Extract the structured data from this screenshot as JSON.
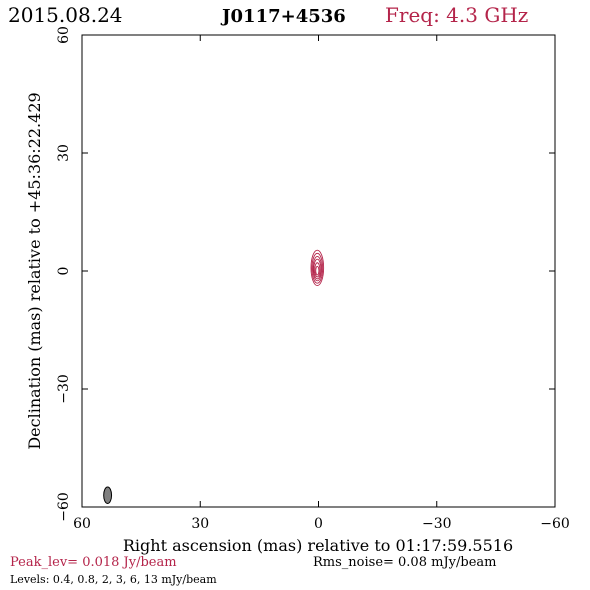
{
  "header": {
    "date": "2015.08.24",
    "source": "J0117+4536",
    "frequency": "Freq: 4.3 GHz"
  },
  "footer": {
    "peak": "Peak_lev=  0.018 Jy/beam",
    "rms": "Rms_noise= 0.08 mJy/beam",
    "levels": "Levels: 0.4, 0.8,   2,   3,   6,  13 mJy/beam"
  },
  "colors": {
    "accent": "#b4244a",
    "beam": "#808080",
    "axis": "#000000"
  },
  "chart_data": {
    "type": "contour",
    "xlabel": "Right ascension (mas) relative to 01:17:59.5516",
    "ylabel": "Declination (mas) relative to +45:36:22.429",
    "xlim": [
      60,
      -60
    ],
    "ylim": [
      -60,
      60
    ],
    "xticks": [
      60,
      30,
      0,
      -30,
      -60
    ],
    "yticks": [
      60,
      30,
      0,
      -30,
      -60
    ],
    "xtick_labels": [
      "60",
      "30",
      "0",
      "−30",
      "−60"
    ],
    "ytick_labels": [
      "60",
      "30",
      "0",
      "−30",
      "−60"
    ],
    "contour_levels_mJy_per_beam": [
      0.4,
      0.8,
      2,
      3,
      6,
      13
    ],
    "peak_Jy_per_beam": 0.018,
    "rms_mJy_per_beam": 0.08,
    "source_center": [
      0.3,
      0.2
    ],
    "contours": [
      {
        "level": 0.4,
        "x": 0.3,
        "y": 0.8,
        "rx": 1.6,
        "ry": 4.5
      },
      {
        "level": 0.8,
        "x": 0.3,
        "y": 0.7,
        "rx": 1.35,
        "ry": 3.8
      },
      {
        "level": 2,
        "x": 0.3,
        "y": 0.6,
        "rx": 1.1,
        "ry": 3.1
      },
      {
        "level": 3,
        "x": 0.3,
        "y": 0.5,
        "rx": 0.9,
        "ry": 2.5
      },
      {
        "level": 6,
        "x": 0.3,
        "y": 0.3,
        "rx": 0.65,
        "ry": 1.8
      },
      {
        "level": 13,
        "x": 0.3,
        "y": 0.1,
        "rx": 0.4,
        "ry": 1.1
      }
    ],
    "beam": {
      "x": 53.5,
      "y": -57,
      "major": 4.2,
      "minor": 2.0
    }
  }
}
